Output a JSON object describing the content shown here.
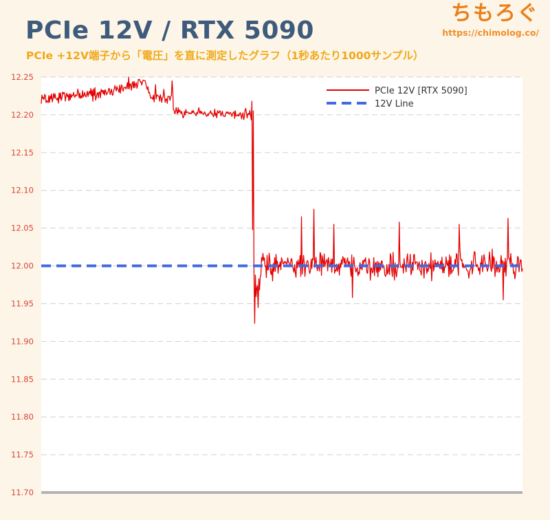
{
  "brand": {
    "name": "ちもろぐ",
    "url": "https://chimolog.co/"
  },
  "chart_data": {
    "type": "line",
    "title": "PCIe 12V / RTX 5090",
    "subtitle": "PCIe +12V端子から「電圧」を直に測定したグラフ（1秒あたり1000サンプル）",
    "xlabel": "",
    "ylabel": "",
    "ylim": [
      11.7,
      12.25
    ],
    "y_ticks": [
      "12.25",
      "12.20",
      "12.15",
      "12.10",
      "12.05",
      "12.00",
      "11.95",
      "11.90",
      "11.85",
      "11.80",
      "11.75",
      "11.70"
    ],
    "grid": true,
    "legend_position": "top-right",
    "x_sample_count": 700,
    "series": [
      {
        "name": "PCIe 12V [RTX 5090]",
        "color": "#e30000",
        "style": "solid",
        "segments": [
          {
            "from": 0,
            "to": 88,
            "level_start": 12.222,
            "level_end": 12.228,
            "spread": 0.013
          },
          {
            "from": 88,
            "to": 150,
            "level_start": 12.228,
            "level_end": 12.243,
            "spread": 0.012
          },
          {
            "from": 150,
            "to": 160,
            "level_start": 12.243,
            "level_end": 12.222,
            "spread": 0.012
          },
          {
            "from": 160,
            "to": 192,
            "level_start": 12.222,
            "level_end": 12.225,
            "spread": 0.013
          },
          {
            "from": 192,
            "to": 230,
            "level_start": 12.203,
            "level_end": 12.203,
            "spread": 0.011
          },
          {
            "from": 230,
            "to": 305,
            "level_start": 12.203,
            "level_end": 12.2,
            "spread": 0.009
          },
          {
            "from": 305,
            "to": 308,
            "level_start": 12.195,
            "level_end": 12.195,
            "spread": 0.004
          },
          {
            "from": 312,
            "to": 320,
            "level_start": 11.972,
            "level_end": 11.985,
            "spread": 0.018
          },
          {
            "from": 320,
            "to": 700,
            "level_start": 12.0,
            "level_end": 12.0,
            "spread": 0.025
          }
        ],
        "spikes": [
          {
            "x": 127,
            "y": 12.25
          },
          {
            "x": 166,
            "y": 12.24
          },
          {
            "x": 190,
            "y": 12.245
          },
          {
            "x": 306,
            "y": 12.218
          },
          {
            "x": 307,
            "y": 12.048
          },
          {
            "x": 308,
            "y": 12.205
          },
          {
            "x": 309,
            "y": 11.99
          },
          {
            "x": 310,
            "y": 11.924
          },
          {
            "x": 311,
            "y": 11.988
          },
          {
            "x": 315,
            "y": 11.945
          },
          {
            "x": 378,
            "y": 12.065
          },
          {
            "x": 396,
            "y": 12.075
          },
          {
            "x": 425,
            "y": 12.055
          },
          {
            "x": 520,
            "y": 12.058
          },
          {
            "x": 607,
            "y": 12.055
          },
          {
            "x": 678,
            "y": 12.063
          },
          {
            "x": 452,
            "y": 11.958
          },
          {
            "x": 671,
            "y": 11.955
          }
        ]
      },
      {
        "name": "12V Line",
        "color": "#4169e1",
        "style": "dashed",
        "values": [
          12.0,
          12.0
        ]
      }
    ]
  }
}
